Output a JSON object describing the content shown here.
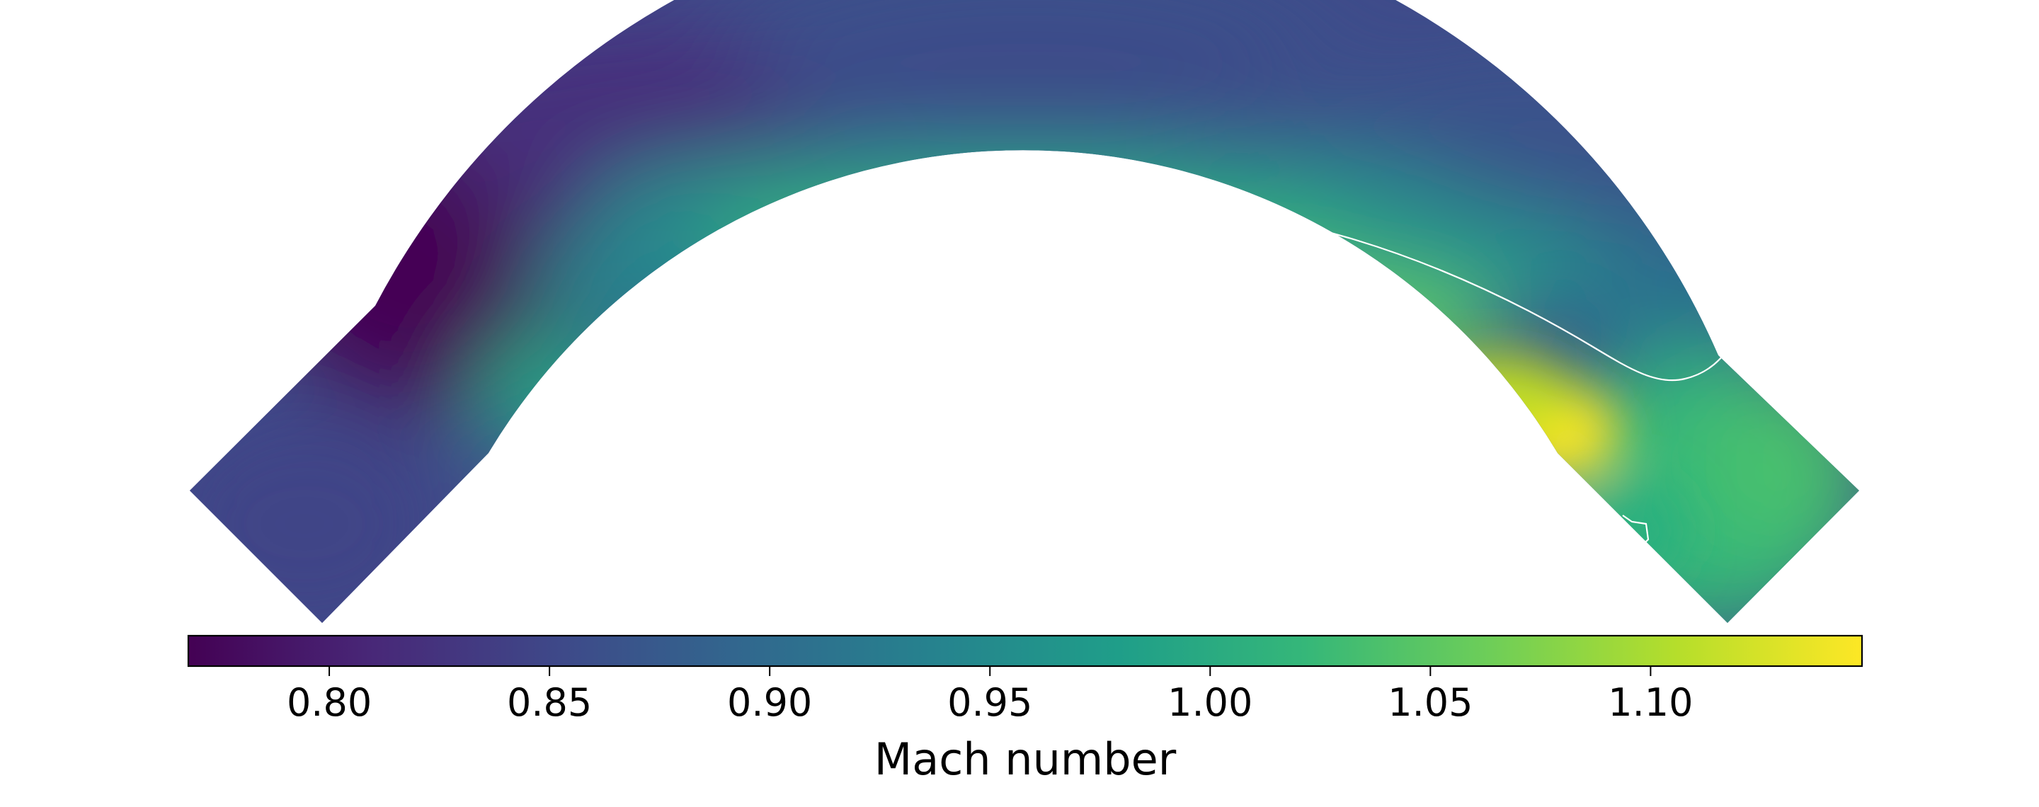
{
  "chart_data": {
    "type": "heatmap",
    "title": "",
    "xlabel": "",
    "ylabel": "",
    "colorbar": {
      "label": "Mach number",
      "colormap": "viridis",
      "range": [
        0.768,
        1.148
      ],
      "ticks": [
        {
          "value": 0.8,
          "label": "0.80"
        },
        {
          "value": 0.85,
          "label": "0.85"
        },
        {
          "value": 0.9,
          "label": "0.90"
        },
        {
          "value": 0.95,
          "label": "0.95"
        },
        {
          "value": 1.0,
          "label": "1.00"
        },
        {
          "value": 1.05,
          "label": "1.05"
        },
        {
          "value": 1.1,
          "label": "1.10"
        }
      ]
    },
    "contour": {
      "level": 1.0,
      "color": "#ffffff"
    },
    "field": {
      "description": "Mach number distribution in a curved duct; sonic line (M = 1) shown as a white contour",
      "min_observed": 0.77,
      "max_observed": 1.14
    }
  },
  "colors": {
    "viridis": [
      "#440154",
      "#482878",
      "#3e4989",
      "#31688e",
      "#26828e",
      "#1f9e89",
      "#35b779",
      "#6ece58",
      "#b5de2b",
      "#fde725"
    ]
  }
}
